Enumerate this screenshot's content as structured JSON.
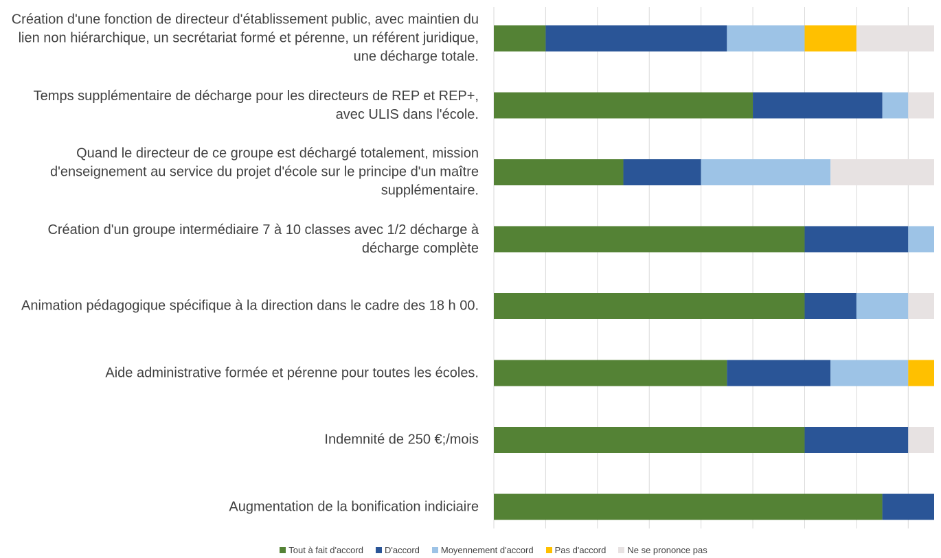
{
  "chart_data": {
    "type": "stacked-bar-horizontal",
    "categories": [
      "Création d'une fonction de directeur d'établissement public, avec maintien du lien non hiérarchique, un secrétariat formé et pérenne, un référent juridique, une décharge totale.",
      "Temps supplémentaire de décharge pour les directeurs de REP et REP+, avec ULIS dans l'école.",
      "Quand le directeur de ce groupe est déchargé totalement, mission d'enseignement au service du projet d'école sur le principe d'un maître supplémentaire.",
      "Création d'un groupe intermédiaire 7 à 10 classes avec 1/2 décharge à décharge complète",
      "Animation pédagogique spécifique à la direction dans le cadre des 18 h 00.",
      "Aide administrative formée et pérenne pour toutes les écoles.",
      "Indemnité de 250 €;/mois",
      "Augmentation de la bonification indiciaire"
    ],
    "series": [
      {
        "name": "Tout à fait d'accord",
        "color": "#548235",
        "values": [
          2,
          10,
          5,
          12,
          12,
          9,
          12,
          15
        ]
      },
      {
        "name": "D'accord",
        "color": "#2a5597",
        "values": [
          7,
          5,
          3,
          4,
          2,
          4,
          4,
          2
        ]
      },
      {
        "name": "Moyennement d'accord",
        "color": "#9dc3e6",
        "values": [
          3,
          1,
          5,
          1,
          2,
          3,
          0,
          0
        ]
      },
      {
        "name": "Pas d'accord",
        "color": "#ffc000",
        "values": [
          2,
          0,
          0,
          0,
          0,
          1,
          0,
          0
        ]
      },
      {
        "name": "Ne se prononce pas",
        "color": "#e7e2e2",
        "values": [
          3,
          1,
          4,
          0,
          1,
          0,
          1,
          0
        ]
      }
    ],
    "xlim": [
      0,
      17
    ],
    "xticks": [
      0,
      2,
      4,
      6,
      8,
      10,
      12,
      14,
      16
    ],
    "grid": true,
    "legend": "bottom"
  }
}
